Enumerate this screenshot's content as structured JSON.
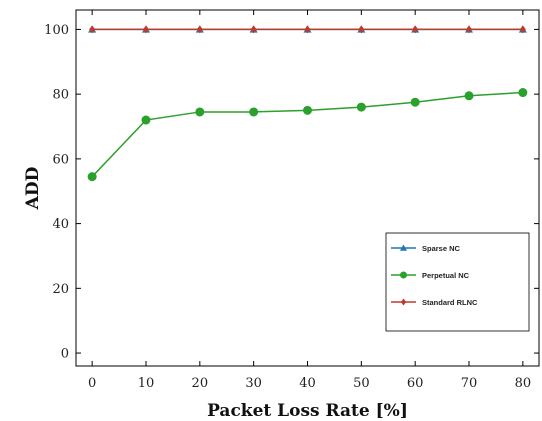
{
  "chart_data": {
    "type": "line",
    "xlabel": "Packet Loss Rate [%]",
    "ylabel": "ADD",
    "x": [
      0,
      10,
      20,
      30,
      40,
      50,
      60,
      70,
      80
    ],
    "xlim": [
      -3,
      83
    ],
    "ylim": [
      -4,
      106
    ],
    "xticks": [
      0,
      10,
      20,
      30,
      40,
      50,
      60,
      70,
      80
    ],
    "yticks": [
      0,
      20,
      40,
      60,
      80,
      100
    ],
    "grid": false,
    "legend_position": "lower-right",
    "series": [
      {
        "name": "Sparse NC",
        "values": [
          100,
          100,
          100,
          100,
          100,
          100,
          100,
          100,
          100
        ],
        "color": "#1f77b4",
        "marker": "triangle"
      },
      {
        "name": "Perpetual NC",
        "values": [
          54.5,
          72,
          74.5,
          74.5,
          75,
          76,
          77.5,
          79.5,
          80.5
        ],
        "color": "#2ca02c",
        "marker": "circle"
      },
      {
        "name": "Standard RLNC",
        "values": [
          100,
          100,
          100,
          100,
          100,
          100,
          100,
          100,
          100
        ],
        "color": "#c0392b",
        "marker": "diamond"
      }
    ]
  }
}
